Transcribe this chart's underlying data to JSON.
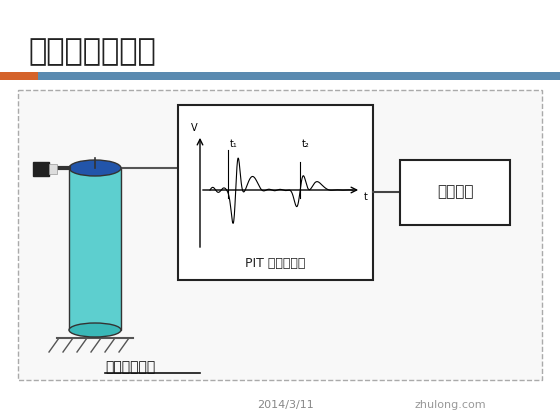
{
  "title": "现场检测流通图",
  "title_fontsize": 22,
  "date_text": "2014/3/11",
  "watermark": "zhulong.com",
  "bg_color": "#ffffff",
  "slide_bg": "#f0f0f0",
  "orange_bar_color": "#d47040",
  "blue_bar_color": "#4a7fb5",
  "pit_label": "PIT 基桩测试仪",
  "output_label": "输出设备",
  "sensor_label": "加速度传感器",
  "t1_label": "t₁",
  "t2_label": "t₂",
  "v_label": "V",
  "t_label": "t"
}
